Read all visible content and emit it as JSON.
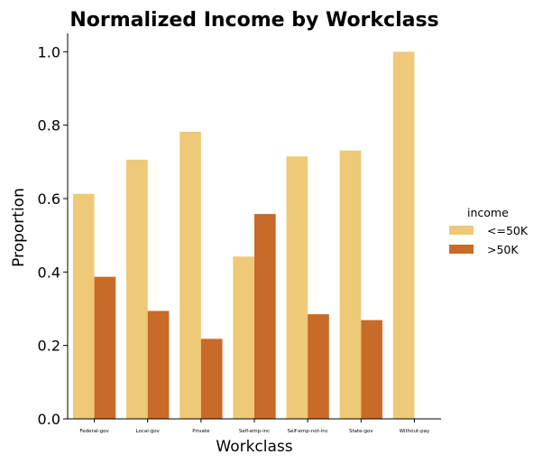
{
  "chart_data": {
    "type": "bar",
    "title": "Normalized Income by Workclass",
    "xlabel": "Workclass",
    "ylabel": "Proportion",
    "ylim": [
      0,
      1.05
    ],
    "yticks": [
      "0.0",
      "0.2",
      "0.4",
      "0.6",
      "0.8",
      "1.0"
    ],
    "ytick_values": [
      0.0,
      0.2,
      0.4,
      0.6,
      0.8,
      1.0
    ],
    "grid": false,
    "legend_position": "right",
    "legend_title": "income",
    "categories": [
      "Federal-gov",
      "Local-gov",
      "Private",
      "Self-emp-inc",
      "Self-emp-not-inc",
      "State-gov",
      "Without-pay"
    ],
    "series": [
      {
        "name": "<=50K",
        "color": "#EEC977",
        "values": [
          0.613,
          0.706,
          0.782,
          0.442,
          0.715,
          0.731,
          1.0
        ]
      },
      {
        "name": ">50K",
        "color": "#C86A28",
        "values": [
          0.387,
          0.294,
          0.218,
          0.558,
          0.285,
          0.269,
          0.0
        ]
      }
    ]
  }
}
